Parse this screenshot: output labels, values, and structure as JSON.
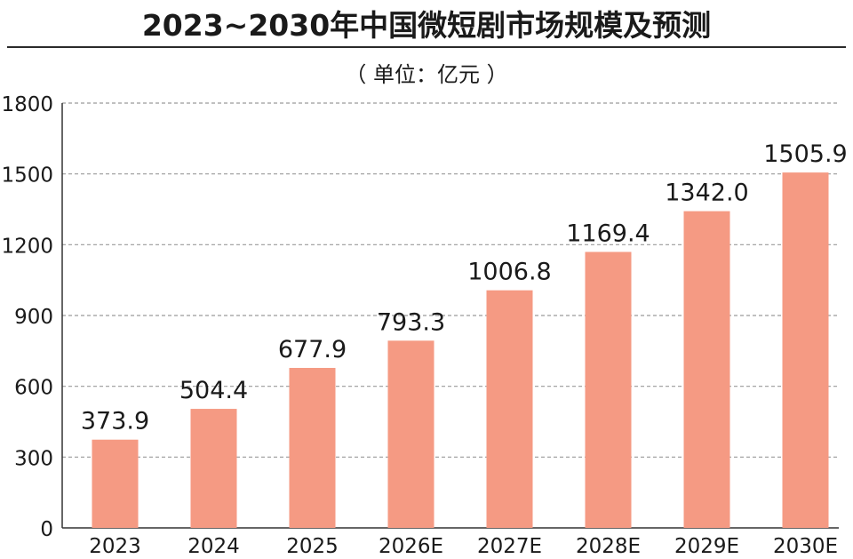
{
  "title": "2023~2030年中国微短剧市场规模及预测",
  "unit_label": "（ 单位：亿元 ）",
  "colors": {
    "bar": "#f59a83",
    "grid": "#9a9a9a",
    "axis": "#333333",
    "text": "#1a1a1a"
  },
  "chart_data": {
    "type": "bar",
    "title": "2023~2030年中国微短剧市场规模及预测",
    "xlabel": "",
    "ylabel": "亿元",
    "categories": [
      "2023",
      "2024",
      "2025",
      "2026E",
      "2027E",
      "2028E",
      "2029E",
      "2030E"
    ],
    "values": [
      373.9,
      504.4,
      677.9,
      793.3,
      1006.8,
      1169.4,
      1342.0,
      1505.9
    ],
    "value_labels": [
      "373.9",
      "504.4",
      "677.9",
      "793.3",
      "1006.8",
      "1169.4",
      "1342.0",
      "1505.9"
    ],
    "ylim": [
      0,
      1800
    ],
    "yticks": [
      "0",
      "300",
      "600",
      "900",
      "1200",
      "1500",
      "1800"
    ],
    "grid": true
  }
}
